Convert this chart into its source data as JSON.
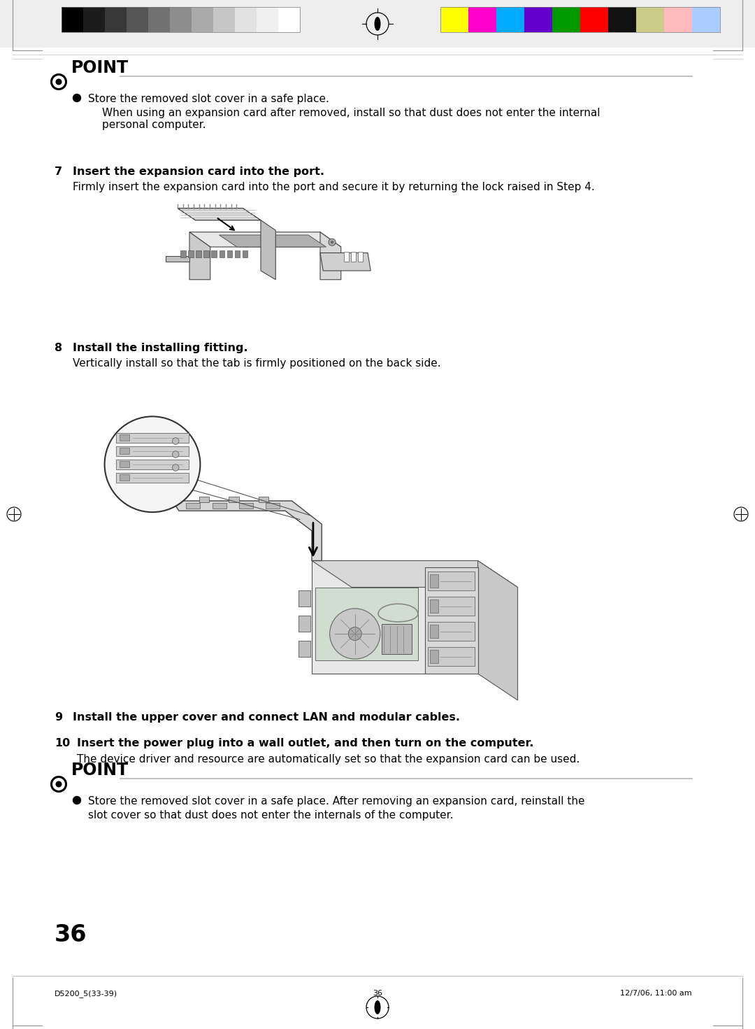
{
  "page_width": 10.8,
  "page_height": 14.71,
  "bg_color": "#ffffff",
  "point_title": "POINT",
  "gs_colors": [
    "#000000",
    "#1c1c1c",
    "#383838",
    "#555555",
    "#717171",
    "#8d8d8d",
    "#aaaaaa",
    "#c6c6c6",
    "#e2e2e2",
    "#f0f0f0",
    "#ffffff"
  ],
  "sw_colors": [
    "#ffff00",
    "#ff00cc",
    "#00aaff",
    "#6600cc",
    "#009900",
    "#ff0000",
    "#111111",
    "#cccc88",
    "#ffbbbb",
    "#aaccff"
  ],
  "bullet_point1": "Store the removed slot cover in a safe place.",
  "bullet_sub1a": "When using an expansion card after removed, install so that dust does not enter the internal",
  "bullet_sub1b": "personal computer.",
  "step7_num": "7",
  "step7_title": "Insert the expansion card into the port.",
  "step7_body": "Firmly insert the expansion card into the port and secure it by returning the lock raised in Step 4.",
  "step8_num": "8",
  "step8_title": "Install the installing fitting.",
  "step8_body": "Vertically install so that the tab is firmly positioned on the back side.",
  "step9_num": "9",
  "step9_title": "Install the upper cover and connect LAN and modular cables.",
  "step10_num": "10",
  "step10_title": "Insert the power plug into a wall outlet, and then turn on the computer.",
  "step10_body": "The device driver and resource are automatically set so that the expansion card can be used.",
  "bullet_point2a": "Store the removed slot cover in a safe place. After removing an expansion card, reinstall the",
  "bullet_point2b": "slot cover so that dust does not enter the internals of the computer.",
  "page_number": "36",
  "footer_left": "D5200_5(33-39)",
  "footer_center": "36",
  "footer_right": "12/7/06, 11:00 am"
}
